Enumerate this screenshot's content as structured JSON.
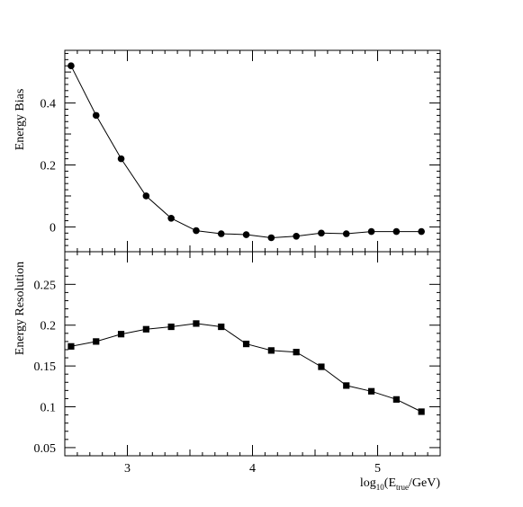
{
  "chart_data": [
    {
      "type": "line",
      "ylabel": "Energy Bias",
      "xlabel_main": "log",
      "xlabel_sub": "10",
      "xlabel_open": "(E",
      "xlabel_sub2": "true",
      "xlabel_close": "/GeV)",
      "xlim": [
        2.5,
        5.5
      ],
      "ylim": [
        -0.08,
        0.57
      ],
      "x_ticks": [
        3,
        4,
        5
      ],
      "y_ticks": [
        0,
        0.2,
        0.4
      ],
      "y_tick_labels": [
        "0",
        "0.2",
        "0.4"
      ],
      "marker": "circle",
      "x": [
        2.55,
        2.75,
        2.95,
        3.15,
        3.35,
        3.55,
        3.75,
        3.95,
        4.15,
        4.35,
        4.55,
        4.75,
        4.95,
        5.15,
        5.35
      ],
      "values": [
        0.52,
        0.36,
        0.22,
        0.1,
        0.028,
        -0.012,
        -0.022,
        -0.025,
        -0.035,
        -0.03,
        -0.02,
        -0.022,
        -0.015,
        -0.015,
        -0.015
      ]
    },
    {
      "type": "line",
      "ylabel": "Energy Resolution",
      "xlabel": "log10(Etrue/GeV)",
      "xlim": [
        2.5,
        5.5
      ],
      "ylim": [
        0.04,
        0.29
      ],
      "x_ticks": [
        3,
        4,
        5
      ],
      "x_tick_labels": [
        "3",
        "4",
        "5"
      ],
      "y_ticks": [
        0.05,
        0.1,
        0.15,
        0.2,
        0.25
      ],
      "y_tick_labels": [
        "0.05",
        "0.1",
        "0.15",
        "0.2",
        "0.25"
      ],
      "marker": "square",
      "x": [
        2.55,
        2.75,
        2.95,
        3.15,
        3.35,
        3.55,
        3.75,
        3.95,
        4.15,
        4.35,
        4.55,
        4.75,
        4.95,
        5.15,
        5.35
      ],
      "values": [
        0.174,
        0.18,
        0.189,
        0.195,
        0.198,
        0.202,
        0.198,
        0.177,
        0.169,
        0.167,
        0.149,
        0.126,
        0.119,
        0.109,
        0.094
      ]
    }
  ]
}
